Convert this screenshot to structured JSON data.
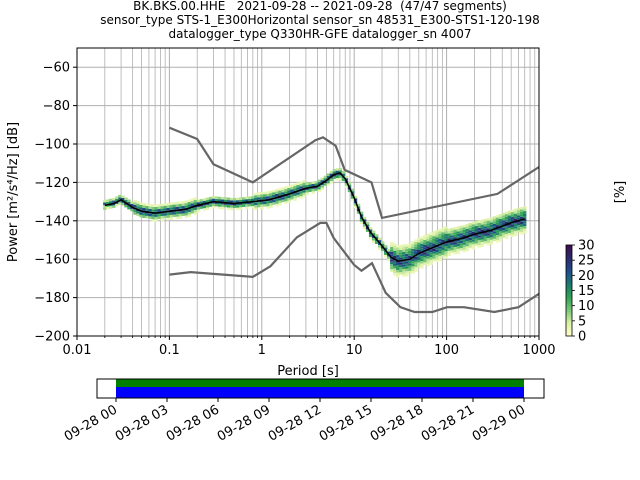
{
  "chart_data": {
    "type": "heatmap",
    "title_lines": [
      "BK.BKS.00.HHE   2021-09-28 -- 2021-09-28  (47/47 segments)",
      "sensor_type STS-1_E300Horizontal sensor_sn 48531_E300-STS1-120-198",
      "datalogger_type Q330HR-GFE datalogger_sn 4007"
    ],
    "xlabel": "Period [s]",
    "ylabel": "Power [m²/s⁴/Hz] [dB]",
    "x_scale": "log",
    "xlim": [
      0.01,
      1000
    ],
    "ylim": [
      -200,
      -50
    ],
    "x_tick_labels": [
      "0.01",
      "0.1",
      "1",
      "10",
      "100",
      "1000"
    ],
    "y_ticks": [
      -60,
      -80,
      -100,
      -120,
      -140,
      -160,
      -180,
      -200
    ],
    "y_tick_labels": [
      "−60",
      "−80",
      "−100",
      "−120",
      "−140",
      "−160",
      "−180",
      "−200"
    ],
    "grid": true,
    "colorbar": {
      "label": "[%]",
      "range": [
        0,
        30
      ],
      "ticks": [
        "0",
        "5",
        "10",
        "15",
        "20",
        "25",
        "30"
      ]
    },
    "noise_models": [
      {
        "periods": [
          0.1,
          0.2,
          0.3,
          0.8,
          3.8,
          4.6,
          6.3,
          7.9,
          15.4,
          20,
          354.8,
          1000
        ],
        "values": [
          -91.5,
          -97.4,
          -110.5,
          -120,
          -98,
          -96.5,
          -101,
          -113.5,
          -120,
          -138.5,
          -126,
          -112
        ]
      },
      {
        "periods": [
          0.1,
          0.17,
          0.8,
          1.24,
          2.4,
          4.3,
          5,
          6,
          10,
          12,
          15.6,
          21.9,
          31.6,
          45,
          70,
          101,
          154,
          328,
          600,
          1000
        ],
        "values": [
          -168,
          -166.7,
          -169.2,
          -163.7,
          -148.6,
          -141.1,
          -141.1,
          -149,
          -163,
          -166,
          -162.1,
          -177.5,
          -185,
          -187.5,
          -187.5,
          -185,
          -185,
          -187.5,
          -185,
          -178
        ]
      }
    ],
    "median_psd": {
      "periods": [
        0.02,
        0.025,
        0.03,
        0.04,
        0.05,
        0.07,
        0.1,
        0.15,
        0.2,
        0.3,
        0.5,
        0.8,
        1.2,
        2,
        3,
        4,
        5,
        6,
        7,
        8,
        10,
        12,
        15,
        20,
        25,
        30,
        40,
        50,
        70,
        100,
        150,
        200,
        300,
        500,
        700
      ],
      "values": [
        -132,
        -131,
        -129,
        -133,
        -135,
        -136,
        -135,
        -134,
        -132,
        -130,
        -131,
        -130,
        -129,
        -126,
        -123,
        -122,
        -119,
        -116,
        -115,
        -118,
        -128,
        -138,
        -146,
        -153,
        -159,
        -161,
        -160,
        -157,
        -154,
        -151,
        -149,
        -147,
        -145,
        -141,
        -139
      ]
    },
    "time_axis": {
      "tick_labels": [
        "09-28 00",
        "09-28 03",
        "09-28 06",
        "09-28 09",
        "09-28 12",
        "09-28 15",
        "09-28 18",
        "09-28 21",
        "09-29 00"
      ],
      "coverage_colors": {
        "data": "#0000ff",
        "segments": "#008000"
      }
    },
    "colors": {
      "noise_model": "#666666",
      "median": "#000000",
      "grid": "#b0b0b0",
      "colormap": [
        "#ffffcc",
        "#d9f0a3",
        "#78c679",
        "#31a354",
        "#1d7a6e",
        "#1f4e8c",
        "#2b2d6e",
        "#3b0f4f"
      ]
    }
  }
}
